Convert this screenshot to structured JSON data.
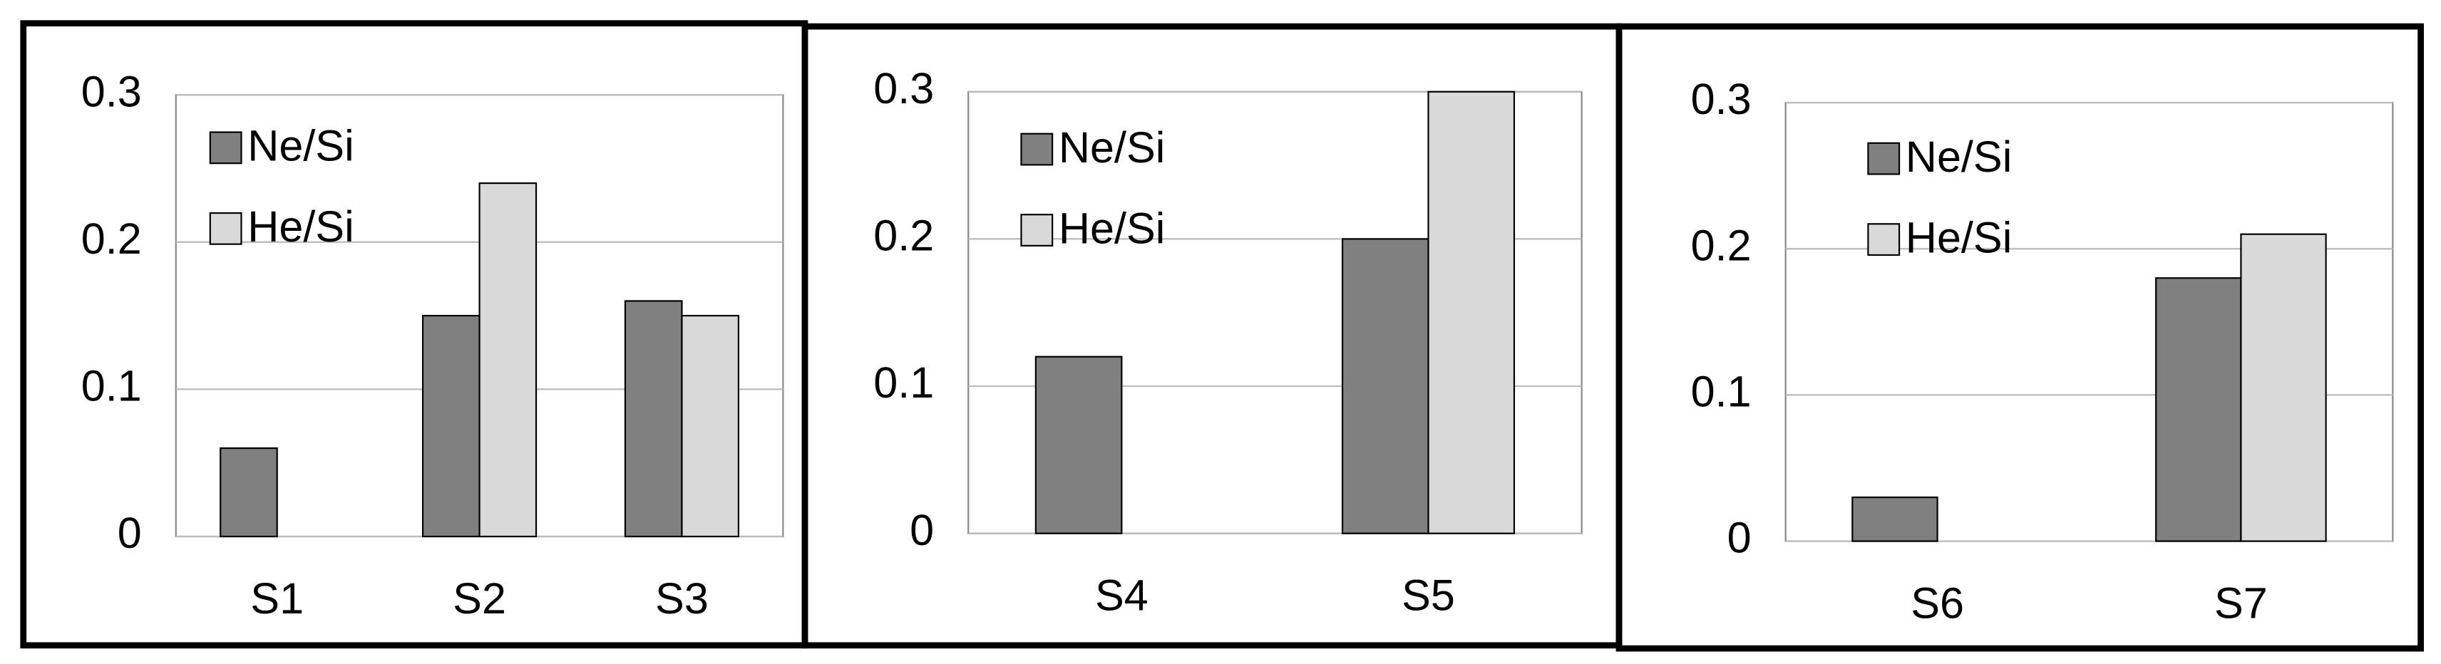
{
  "chart_data": [
    {
      "type": "bar",
      "categories": [
        "S1",
        "S2",
        "S3"
      ],
      "series": [
        {
          "name": "Ne/Si",
          "color": "#808080",
          "values": [
            0.06,
            0.15,
            0.16
          ]
        },
        {
          "name": "He/Si",
          "color": "#d9d9d9",
          "values": [
            null,
            0.24,
            0.15
          ]
        }
      ],
      "ylim": [
        0,
        0.3
      ],
      "yticks": [
        0,
        0.1,
        0.2,
        0.3
      ],
      "grid": true
    },
    {
      "type": "bar",
      "categories": [
        "S4",
        "S5"
      ],
      "series": [
        {
          "name": "Ne/Si",
          "color": "#808080",
          "values": [
            0.12,
            0.2
          ]
        },
        {
          "name": "He/Si",
          "color": "#d9d9d9",
          "values": [
            null,
            0.3
          ]
        }
      ],
      "ylim": [
        0,
        0.3
      ],
      "yticks": [
        0,
        0.1,
        0.2,
        0.3
      ],
      "grid": true
    },
    {
      "type": "bar",
      "categories": [
        "S6",
        "S7"
      ],
      "series": [
        {
          "name": "Ne/Si",
          "color": "#808080",
          "values": [
            0.03,
            0.18
          ]
        },
        {
          "name": "He/Si",
          "color": "#d9d9d9",
          "values": [
            null,
            0.21
          ]
        }
      ],
      "ylim": [
        0,
        0.3
      ],
      "yticks": [
        0,
        0.1,
        0.2,
        0.3
      ],
      "grid": true
    }
  ]
}
